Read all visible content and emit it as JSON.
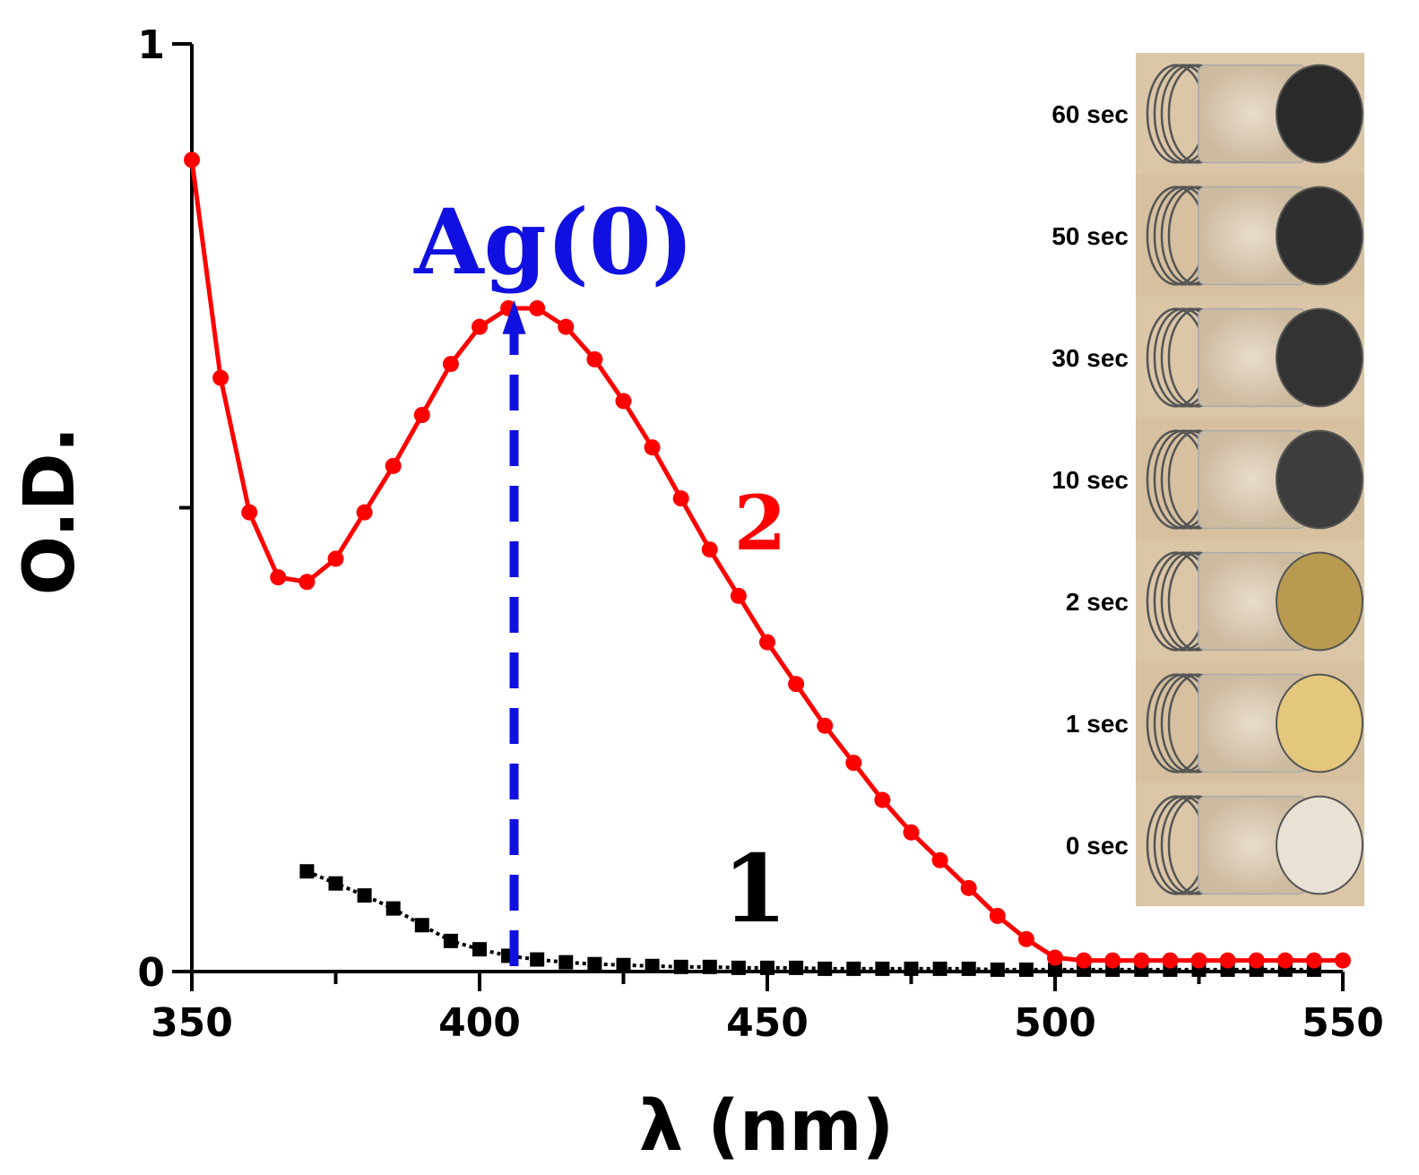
{
  "chart_data": {
    "type": "line",
    "title": "",
    "xlabel": "λ (nm)",
    "ylabel": "O.D.",
    "xlim": [
      350,
      550
    ],
    "ylim": [
      0,
      1
    ],
    "x_major_ticks": [
      350,
      400,
      450,
      500,
      550
    ],
    "x_minor_ticks": [
      375,
      425,
      475,
      525
    ],
    "y_major_ticks": [
      0,
      1
    ],
    "y_minor_ticks": [
      0.5
    ],
    "y_tick_labels": [
      "0",
      "1"
    ],
    "grid": false,
    "series": [
      {
        "name": "2",
        "color": "#ff0000",
        "marker": "circle",
        "line_style": "solid",
        "x": [
          350,
          355,
          360,
          365,
          370,
          375,
          380,
          385,
          390,
          395,
          400,
          405,
          410,
          415,
          420,
          425,
          430,
          435,
          440,
          445,
          450,
          455,
          460,
          465,
          470,
          475,
          480,
          485,
          490,
          495,
          500,
          505,
          510,
          515,
          520,
          525,
          530,
          535,
          540,
          545,
          550
        ],
        "values": [
          0.875,
          0.64,
          0.495,
          0.425,
          0.42,
          0.445,
          0.495,
          0.545,
          0.6,
          0.655,
          0.695,
          0.715,
          0.715,
          0.695,
          0.66,
          0.615,
          0.565,
          0.51,
          0.455,
          0.405,
          0.355,
          0.31,
          0.265,
          0.225,
          0.185,
          0.15,
          0.12,
          0.09,
          0.06,
          0.035,
          0.015,
          0.012,
          0.012,
          0.012,
          0.012,
          0.012,
          0.012,
          0.012,
          0.012,
          0.012,
          0.012
        ]
      },
      {
        "name": "1",
        "color": "#000000",
        "marker": "square",
        "line_style": "dotted",
        "x": [
          370,
          375,
          380,
          385,
          390,
          395,
          400,
          405,
          410,
          415,
          420,
          425,
          430,
          435,
          440,
          445,
          450,
          455,
          460,
          465,
          470,
          475,
          480,
          485,
          490,
          495,
          500,
          505,
          510,
          515,
          520,
          525,
          530,
          535,
          540,
          545
        ],
        "values": [
          0.108,
          0.095,
          0.082,
          0.068,
          0.05,
          0.033,
          0.024,
          0.017,
          0.013,
          0.01,
          0.008,
          0.007,
          0.006,
          0.005,
          0.005,
          0.004,
          0.004,
          0.004,
          0.003,
          0.003,
          0.003,
          0.003,
          0.003,
          0.003,
          0.002,
          0.002,
          0.002,
          0.002,
          0.002,
          0.002,
          0.002,
          0.002,
          0.002,
          0.002,
          0.002,
          0.002
        ]
      }
    ],
    "annotations": [
      {
        "text": "Ag(0)",
        "color": "#1010e0",
        "points_to_x": 406,
        "arrow_from_value": 0.0,
        "arrow_to_value": 0.72
      },
      {
        "text": "2",
        "color": "#ff0000"
      },
      {
        "text": "1",
        "color": "#000000"
      }
    ]
  },
  "inset_photo": {
    "labels": [
      "60 sec",
      "50 sec",
      "30 sec",
      "10 sec",
      "2 sec",
      "1 sec",
      "0 sec"
    ],
    "fill_colors": [
      "#2a2a2a",
      "#2f2f2f",
      "#333333",
      "#3d3d3d",
      "#b89b50",
      "#e3c77c",
      "#e9e1d4"
    ],
    "background": "#d9c3a3"
  }
}
